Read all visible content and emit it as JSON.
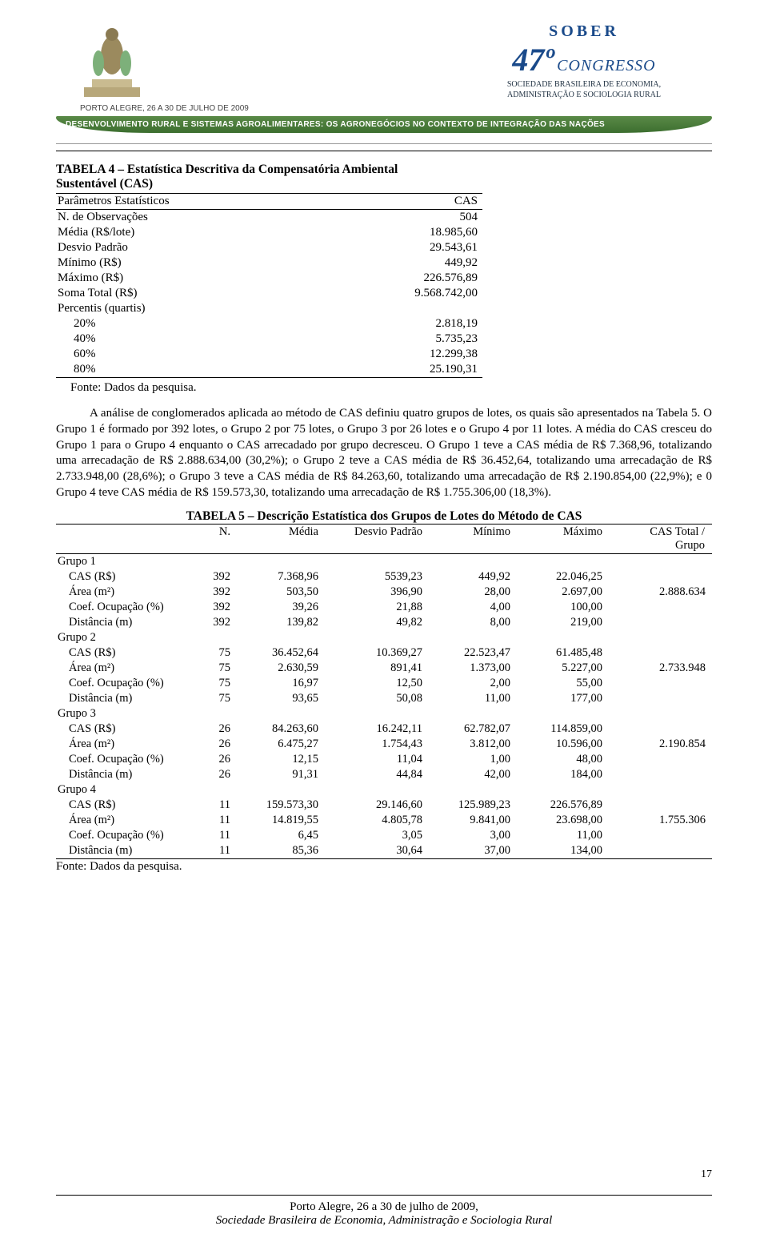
{
  "banner": {
    "dateplace": "PORTO ALEGRE, 26 A 30 DE JULHO DE 2009",
    "ribbon": "DESENVOLVIMENTO RURAL E SISTEMAS AGROALIMENTARES: OS AGRONEGÓCIOS NO CONTEXTO DE INTEGRAÇÃO DAS NAÇÕES",
    "logo47": "47º",
    "congresso": "CONGRESSO",
    "sober_line": "SOBER",
    "sub1": "SOCIEDADE BRASILEIRA DE ECONOMIA,",
    "sub2": "ADMINISTRAÇÃO E SOCIOLOGIA RURAL"
  },
  "table4": {
    "title1": "TABELA 4 – Estatística Descritiva da Compensatória Ambiental",
    "title2": "Sustentável (CAS)",
    "head_param": "Parâmetros Estatísticos",
    "head_cas": "CAS",
    "rows": [
      {
        "label": "N. de Observações",
        "val": "504"
      },
      {
        "label": "Média (R$/lote)",
        "val": "18.985,60"
      },
      {
        "label": "Desvio Padrão",
        "val": "29.543,61"
      },
      {
        "label": "Mínimo (R$)",
        "val": "449,92"
      },
      {
        "label": "Máximo (R$)",
        "val": "226.576,89"
      },
      {
        "label": "Soma Total (R$)",
        "val": "9.568.742,00"
      }
    ],
    "percentis_label": "Percentis (quartis)",
    "percentis": [
      {
        "label": "20%",
        "val": "2.818,19"
      },
      {
        "label": "40%",
        "val": "5.735,23"
      },
      {
        "label": "60%",
        "val": "12.299,38"
      },
      {
        "label": "80%",
        "val": "25.190,31"
      }
    ],
    "source": "Fonte: Dados da pesquisa."
  },
  "paragraph": "A análise de conglomerados aplicada ao método de CAS definiu quatro grupos de lotes, os quais são apresentados na Tabela 5. O Grupo 1 é formado por 392 lotes, o Grupo 2 por 75 lotes, o Grupo 3 por 26 lotes e o Grupo 4 por 11 lotes. A média do CAS cresceu do Grupo 1 para o Grupo 4 enquanto o CAS arrecadado por grupo decresceu. O Grupo 1 teve a CAS média de R$ 7.368,96, totalizando uma arrecadação de R$ 2.888.634,00 (30,2%); o Grupo 2 teve a CAS média de R$ 36.452,64, totalizando uma arrecadação de R$ 2.733.948,00 (28,6%); o Grupo 3 teve a CAS média de R$ 84.263,60, totalizando uma arrecadação de R$ 2.190.854,00 (22,9%); e 0 Grupo 4 teve CAS média de R$ 159.573,30, totalizando uma arrecadação de R$ 1.755.306,00 (18,3%).",
  "table5": {
    "title": "TABELA 5 – Descrição Estatística dos Grupos de Lotes do Método de CAS",
    "head": {
      "n": "N.",
      "media": "Média",
      "dp": "Desvio Padrão",
      "min": "Mínimo",
      "max": "Máximo",
      "tot": "CAS Total /",
      "tot2": "Grupo"
    },
    "groups": [
      {
        "name": "Grupo 1",
        "total": "2.888.634",
        "rows": [
          {
            "l": "CAS (R$)",
            "n": "392",
            "m": "7.368,96",
            "d": "5539,23",
            "mi": "449,92",
            "ma": "22.046,25"
          },
          {
            "l": "Área (m²)",
            "n": "392",
            "m": "503,50",
            "d": "396,90",
            "mi": "28,00",
            "ma": "2.697,00"
          },
          {
            "l": "Coef. Ocupação (%)",
            "n": "392",
            "m": "39,26",
            "d": "21,88",
            "mi": "4,00",
            "ma": "100,00"
          },
          {
            "l": "Distância (m)",
            "n": "392",
            "m": "139,82",
            "d": "49,82",
            "mi": "8,00",
            "ma": "219,00"
          }
        ]
      },
      {
        "name": "Grupo 2",
        "total": "2.733.948",
        "rows": [
          {
            "l": "CAS (R$)",
            "n": "75",
            "m": "36.452,64",
            "d": "10.369,27",
            "mi": "22.523,47",
            "ma": "61.485,48"
          },
          {
            "l": "Área (m²)",
            "n": "75",
            "m": "2.630,59",
            "d": "891,41",
            "mi": "1.373,00",
            "ma": "5.227,00"
          },
          {
            "l": "Coef. Ocupação (%)",
            "n": "75",
            "m": "16,97",
            "d": "12,50",
            "mi": "2,00",
            "ma": "55,00"
          },
          {
            "l": "Distância (m)",
            "n": "75",
            "m": "93,65",
            "d": "50,08",
            "mi": "11,00",
            "ma": "177,00"
          }
        ]
      },
      {
        "name": "Grupo 3",
        "total": "2.190.854",
        "rows": [
          {
            "l": "CAS (R$)",
            "n": "26",
            "m": "84.263,60",
            "d": "16.242,11",
            "mi": "62.782,07",
            "ma": "114.859,00"
          },
          {
            "l": "Área (m²)",
            "n": "26",
            "m": "6.475,27",
            "d": "1.754,43",
            "mi": "3.812,00",
            "ma": "10.596,00"
          },
          {
            "l": "Coef. Ocupação (%)",
            "n": "26",
            "m": "12,15",
            "d": "11,04",
            "mi": "1,00",
            "ma": "48,00"
          },
          {
            "l": "Distância (m)",
            "n": "26",
            "m": "91,31",
            "d": "44,84",
            "mi": "42,00",
            "ma": "184,00"
          }
        ]
      },
      {
        "name": "Grupo 4",
        "total": "1.755.306",
        "rows": [
          {
            "l": "CAS (R$)",
            "n": "11",
            "m": "159.573,30",
            "d": "29.146,60",
            "mi": "125.989,23",
            "ma": "226.576,89"
          },
          {
            "l": "Área (m²)",
            "n": "11",
            "m": "14.819,55",
            "d": "4.805,78",
            "mi": "9.841,00",
            "ma": "23.698,00"
          },
          {
            "l": "Coef. Ocupação (%)",
            "n": "11",
            "m": "6,45",
            "d": "3,05",
            "mi": "3,00",
            "ma": "11,00"
          },
          {
            "l": "Distância (m)",
            "n": "11",
            "m": "85,36",
            "d": "30,64",
            "mi": "37,00",
            "ma": "134,00"
          }
        ]
      }
    ],
    "source": "Fonte: Dados da pesquisa."
  },
  "footer": {
    "line1": "Porto Alegre, 26 a 30 de julho de 2009,",
    "line2": "Sociedade Brasileira de Economia, Administração e Sociologia Rural",
    "page": "17"
  },
  "colors": {
    "ribbon_bg": "#3c6e2f",
    "logo_blue": "#1a4a8a",
    "text": "#000000",
    "rule": "#000000"
  }
}
